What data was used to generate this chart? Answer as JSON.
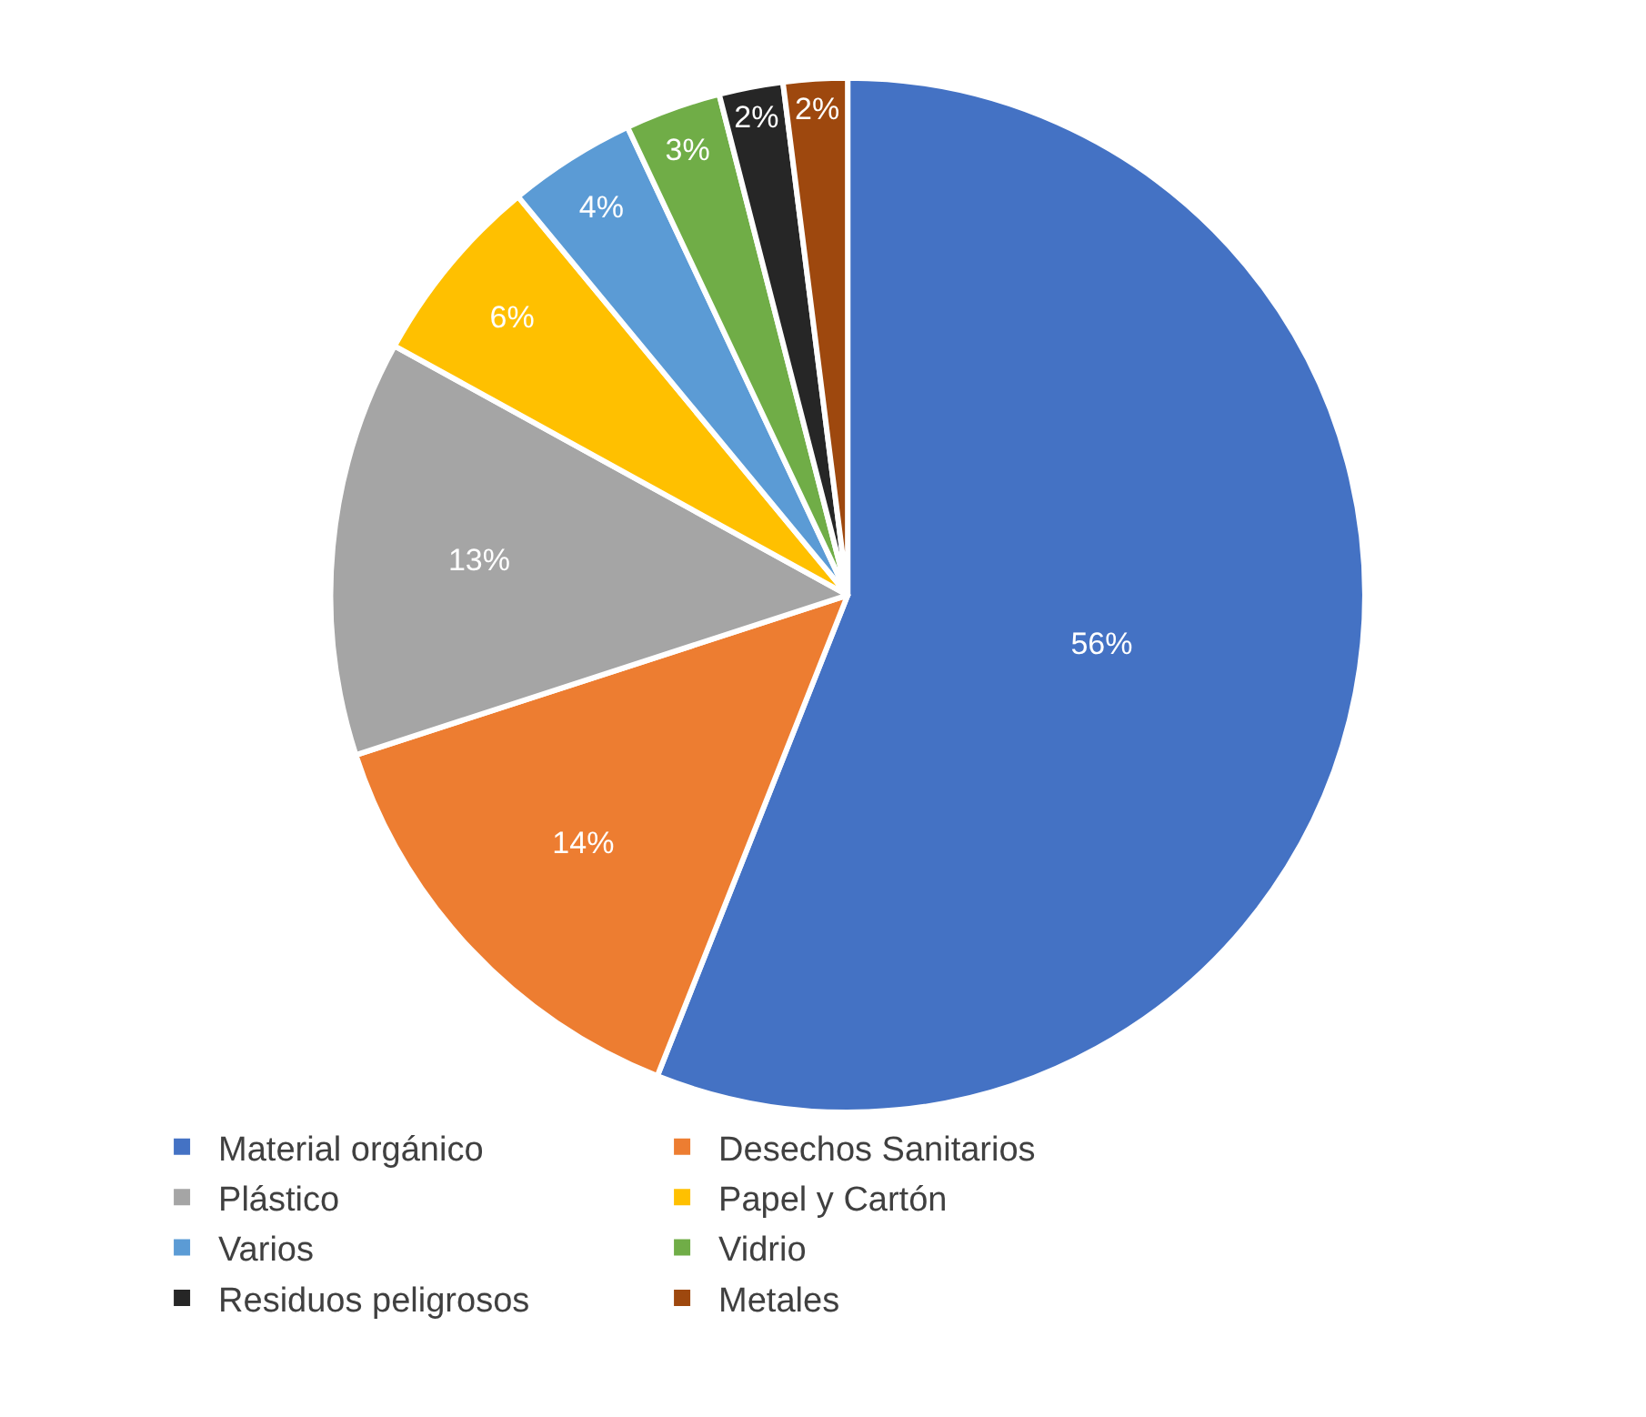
{
  "chart_data": {
    "type": "pie",
    "categories": [
      "Material orgánico",
      "Desechos Sanitarios",
      "Plástico",
      "Papel y Cartón",
      "Varios",
      "Vidrio",
      "Residuos peligrosos",
      "Metales"
    ],
    "values": [
      56,
      14,
      13,
      6,
      4,
      3,
      2,
      2
    ],
    "colors": [
      "#4472c4",
      "#ed7d31",
      "#a5a5a5",
      "#ffc000",
      "#5b9bd5",
      "#70ad47",
      "#262626",
      "#9e480e"
    ],
    "value_labels": [
      "56%",
      "14%",
      "13%",
      "6%",
      "4%",
      "3%",
      "2%",
      "2%"
    ],
    "legend": "bottom"
  }
}
